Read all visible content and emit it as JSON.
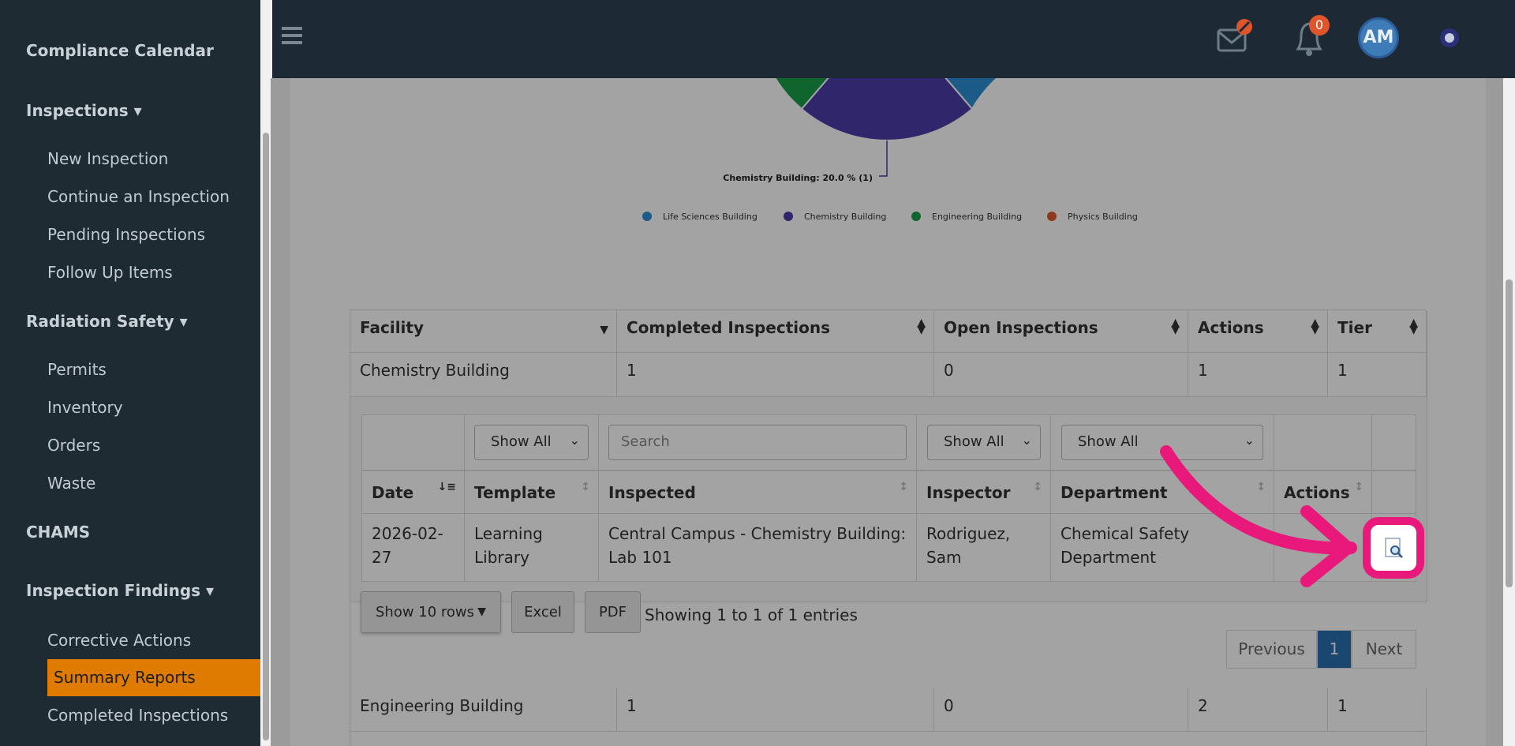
{
  "sidebar": {
    "top": "Compliance Calendar",
    "sections": [
      {
        "title": "Inspections",
        "items": [
          "New Inspection",
          "Continue an Inspection",
          "Pending Inspections",
          "Follow Up Items"
        ]
      },
      {
        "title": "Radiation Safety",
        "items": [
          "Permits",
          "Inventory",
          "Orders",
          "Waste"
        ]
      },
      {
        "title": "CHAMS"
      },
      {
        "title": "Inspection Findings",
        "items": [
          "Corrective Actions",
          "Summary Reports",
          "Completed Inspections"
        ]
      }
    ]
  },
  "header": {
    "notification_count": 0,
    "avatar": "AM"
  },
  "chart": {
    "slice_label": "Chemistry Building: 20.0 % (1)",
    "legend": [
      {
        "name": "Life Sciences Building",
        "color": "#2d8fd4"
      },
      {
        "name": "Chemistry Building",
        "color": "#4a3ca8"
      },
      {
        "name": "Engineering Building",
        "color": "#1a9e4a"
      },
      {
        "name": "Physics Building",
        "color": "#e05a2c"
      }
    ]
  },
  "facility_table": {
    "columns": [
      "Facility",
      "Completed Inspections",
      "Open Inspections",
      "Actions",
      "Tier"
    ],
    "rows": [
      [
        "Chemistry Building",
        1,
        0,
        1,
        1
      ],
      [
        "Engineering Building",
        1,
        0,
        2,
        1
      ]
    ]
  },
  "detail_table": {
    "filters": [
      "Show All",
      "Search",
      "Show All",
      "Show All"
    ],
    "columns": [
      "Date",
      "Template",
      "Inspected",
      "Inspector",
      "Department",
      "Actions"
    ],
    "rows": [
      [
        "2026-02-27",
        "Learning Library",
        "Central Campus - Chemistry Building: Lab 101",
        "Rodriguez, Sam",
        "Chemical Safety Department"
      ]
    ],
    "page_length": "Show 10 rows",
    "buttons": [
      "Excel",
      "PDF"
    ],
    "info": "Showing 1 to 1 of 1 entries",
    "pagination": [
      "Previous",
      1,
      "Next"
    ]
  }
}
